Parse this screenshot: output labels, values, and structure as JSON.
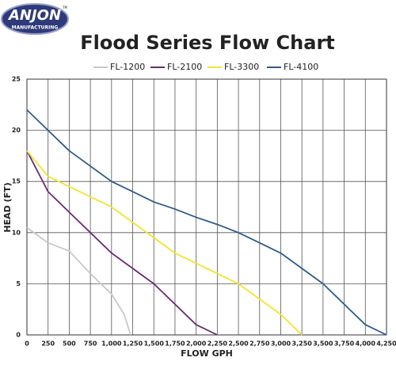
{
  "logo": {
    "name": "ANJON",
    "subtitle": "MANUFACTURING",
    "mark": "TM"
  },
  "chart_data": {
    "type": "line",
    "title": "Flood Series Flow Chart",
    "x_label": "FLOW GPH",
    "y_label": "HEAD (FT)",
    "xlim": [
      0,
      4250
    ],
    "ylim": [
      0,
      25
    ],
    "xticks": [
      0,
      250,
      500,
      750,
      {
        "value": 1000,
        "label": "1,000"
      },
      {
        "value": 1250,
        "label": "1,250"
      },
      {
        "value": 1500,
        "label": "1,500"
      },
      {
        "value": 1750,
        "label": "1,750"
      },
      {
        "value": 2000,
        "label": "2,000"
      },
      {
        "value": 2250,
        "label": "2,250"
      },
      {
        "value": 2500,
        "label": "2,500"
      },
      {
        "value": 2750,
        "label": "2,750"
      },
      {
        "value": 3000,
        "label": "3,000"
      },
      {
        "value": 3250,
        "label": "3,250"
      },
      {
        "value": 3500,
        "label": "3,500"
      },
      {
        "value": 3750,
        "label": "3,750"
      },
      {
        "value": 4000,
        "label": "4,000"
      },
      {
        "value": 4250,
        "label": "4,250"
      }
    ],
    "yticks": [
      0,
      5,
      10,
      15,
      20,
      25
    ],
    "grid": true,
    "series": [
      {
        "name": "FL-1200",
        "color": "#c8c8c8",
        "x": [
          0,
          250,
          500,
          750,
          1000,
          1150,
          1225
        ],
        "values": [
          10.5,
          9,
          8.2,
          6,
          4,
          2,
          0
        ]
      },
      {
        "name": "FL-2100",
        "color": "#6b2a73",
        "x": [
          0,
          250,
          500,
          750,
          1000,
          1250,
          1500,
          1750,
          2000,
          2250
        ],
        "values": [
          18,
          14,
          12,
          10,
          8,
          6.5,
          5,
          3,
          1,
          0
        ]
      },
      {
        "name": "FL-3300",
        "color": "#f2e52a",
        "x": [
          0,
          250,
          500,
          750,
          1000,
          1250,
          1500,
          1750,
          2000,
          2250,
          2500,
          2750,
          3000,
          3250
        ],
        "values": [
          18,
          15.5,
          14.5,
          13.5,
          12.5,
          11,
          9.5,
          8,
          7,
          6,
          5,
          3.5,
          2,
          0
        ]
      },
      {
        "name": "FL-4100",
        "color": "#2f5a8c",
        "x": [
          0,
          250,
          500,
          750,
          1000,
          1250,
          1500,
          1750,
          2000,
          2250,
          2500,
          2750,
          3000,
          3250,
          3500,
          3750,
          4000,
          4250
        ],
        "values": [
          22,
          20,
          18,
          16.5,
          15,
          14,
          13,
          12.3,
          11.5,
          10.8,
          10,
          9,
          8,
          6.5,
          5,
          3,
          1,
          0
        ]
      }
    ]
  }
}
